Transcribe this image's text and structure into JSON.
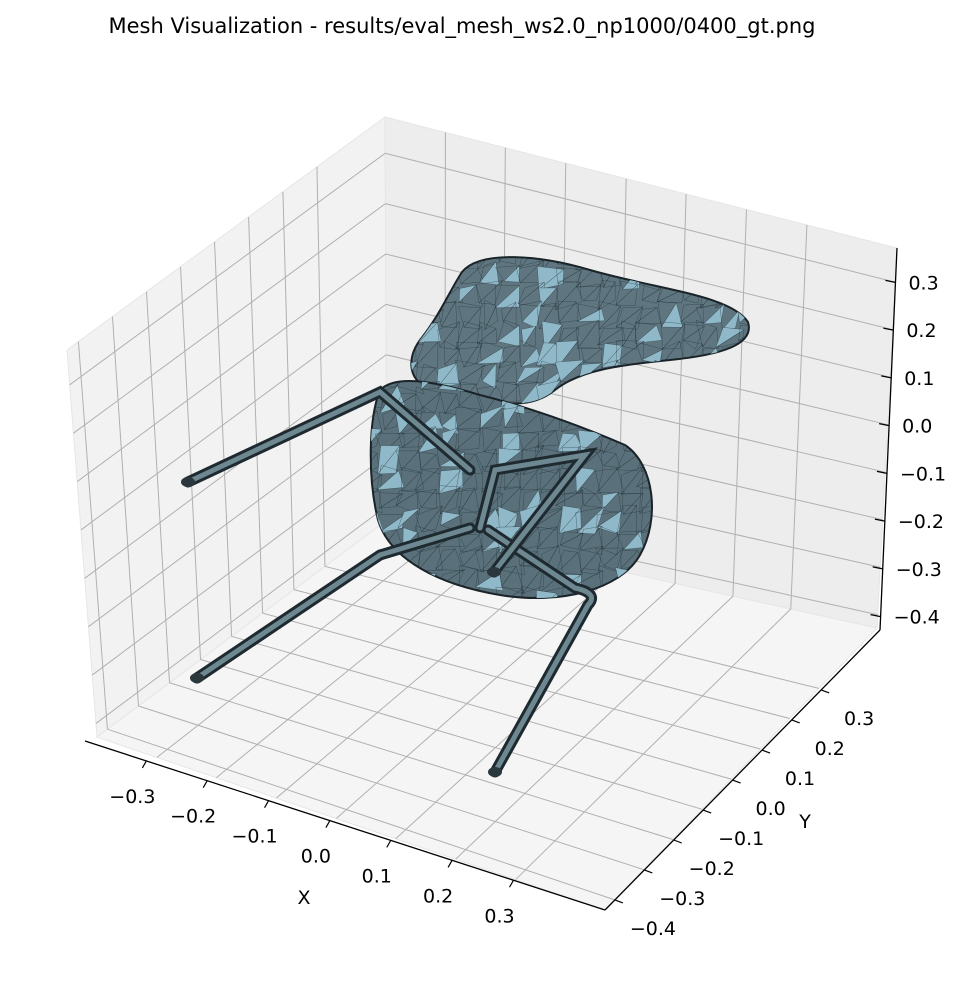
{
  "chart_data": {
    "type": "mesh3d",
    "title": "Mesh Visualization - results/eval_mesh_ws2.0_np1000/0400_gt.png",
    "xlabel": "X",
    "ylabel": "Y",
    "zlabel": "",
    "x_ticks": [
      "−0.3",
      "−0.2",
      "−0.1",
      "0.0",
      "0.1",
      "0.2",
      "0.3"
    ],
    "y_ticks": [
      "−0.4",
      "−0.3",
      "−0.2",
      "−0.1",
      "0.0",
      "0.1",
      "0.2",
      "0.3"
    ],
    "z_ticks": [
      "−0.4",
      "−0.3",
      "−0.2",
      "−0.1",
      "0.0",
      "0.1",
      "0.2",
      "0.3"
    ],
    "grid": true,
    "object": "chair (upside down, four tubular legs)",
    "colors": {
      "face": "#5f7680",
      "face_light": "#8fb8c8",
      "edge": "#1e2a30",
      "pane": "#f2f2f2",
      "pane_dark": "#ebebeb"
    }
  }
}
